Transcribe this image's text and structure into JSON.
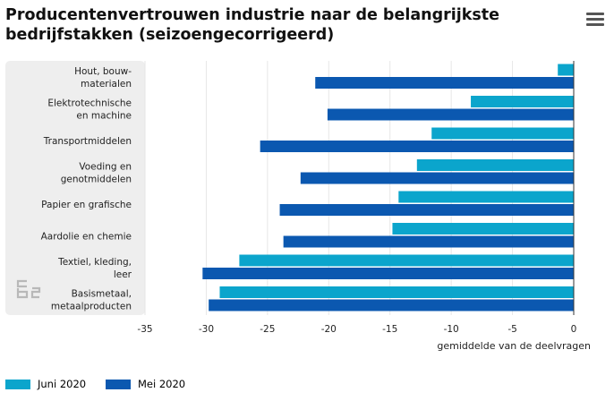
{
  "title": "Producentenvertrouwen industrie naar de belangrijkste\nbedrijfstakken (seizoengecorrigeerd)",
  "menu_icon": "hamburger-menu-icon",
  "logo_icon": "cbs-logo-icon",
  "colors": {
    "juni": "#0ba5cc",
    "mei": "#0b58b0",
    "panel": "#eeeeee"
  },
  "chart_data": {
    "type": "bar",
    "orientation": "horizontal",
    "categories": [
      "Hout, bouw-\nmaterialen",
      "Elektrotechnische\nen machine",
      "Transportmiddelen",
      "Voeding en\ngenotmiddelen",
      "Papier en grafische",
      "Aardolie en chemie",
      "Textiel, kleding,\nleer",
      "Basismetaal,\nmetaalproducten"
    ],
    "series": [
      {
        "name": "Juni 2020",
        "values": [
          -1.3,
          -8.4,
          -11.6,
          -12.8,
          -14.3,
          -14.8,
          -27.3,
          -28.9
        ]
      },
      {
        "name": "Mei 2020",
        "values": [
          -21.1,
          -20.1,
          -25.6,
          -22.3,
          -24.0,
          -23.7,
          -30.3,
          -29.8
        ]
      }
    ],
    "xlabel": "gemiddelde van de deelvragen",
    "xlim": [
      -35,
      0
    ],
    "xticks": [
      -35,
      -30,
      -25,
      -20,
      -15,
      -10,
      -5,
      0
    ],
    "legend_position": "bottom-left"
  }
}
